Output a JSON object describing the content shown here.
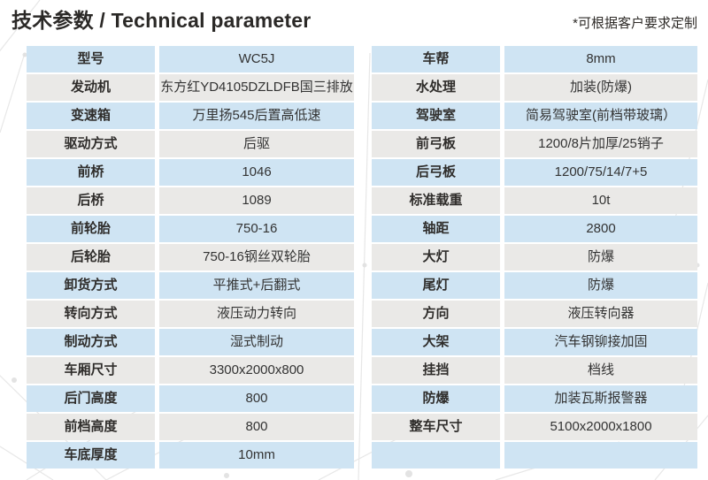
{
  "header": {
    "title": "技术参数 / Technical parameter",
    "note": "*可根据客户要求定制"
  },
  "colors": {
    "row_blue": "#cfe4f3",
    "row_gray": "#eae9e7",
    "title_text": "#2b2927",
    "body_text": "#333333"
  },
  "left_table": {
    "rows": [
      {
        "label": "型号",
        "value": "WC5J"
      },
      {
        "label": "发动机",
        "value": "东方红YD4105DZLDFB国三排放"
      },
      {
        "label": "变速箱",
        "value": "万里扬545后置高低速"
      },
      {
        "label": "驱动方式",
        "value": "后驱"
      },
      {
        "label": "前桥",
        "value": "1046"
      },
      {
        "label": "后桥",
        "value": "1089"
      },
      {
        "label": "前轮胎",
        "value": "750-16"
      },
      {
        "label": "后轮胎",
        "value": "750-16钢丝双轮胎"
      },
      {
        "label": "卸货方式",
        "value": "平推式+后翻式"
      },
      {
        "label": "转向方式",
        "value": "液压动力转向"
      },
      {
        "label": "制动方式",
        "value": "湿式制动"
      },
      {
        "label": "车厢尺寸",
        "value": "3300x2000x800"
      },
      {
        "label": "后门高度",
        "value": "800"
      },
      {
        "label": "前档高度",
        "value": "800"
      },
      {
        "label": "车底厚度",
        "value": "10mm"
      }
    ]
  },
  "right_table": {
    "rows": [
      {
        "label": "车帮",
        "value": "8mm"
      },
      {
        "label": "水处理",
        "value": "加装(防爆)"
      },
      {
        "label": "驾驶室",
        "value": "简易驾驶室(前档带玻璃）"
      },
      {
        "label": "前弓板",
        "value": "1200/8片加厚/25销子"
      },
      {
        "label": "后弓板",
        "value": "1200/75/14/7+5"
      },
      {
        "label": "标准载重",
        "value": "10t"
      },
      {
        "label": "轴距",
        "value": "2800"
      },
      {
        "label": "大灯",
        "value": "防爆"
      },
      {
        "label": "尾灯",
        "value": "防爆"
      },
      {
        "label": "方向",
        "value": "液压转向器"
      },
      {
        "label": "大架",
        "value": "汽车钢铆接加固"
      },
      {
        "label": "挂挡",
        "value": "档线"
      },
      {
        "label": "防爆",
        "value": "加装瓦斯报警器"
      },
      {
        "label": "整车尺寸",
        "value": "5100x2000x1800"
      },
      {
        "label": "",
        "value": ""
      }
    ]
  }
}
